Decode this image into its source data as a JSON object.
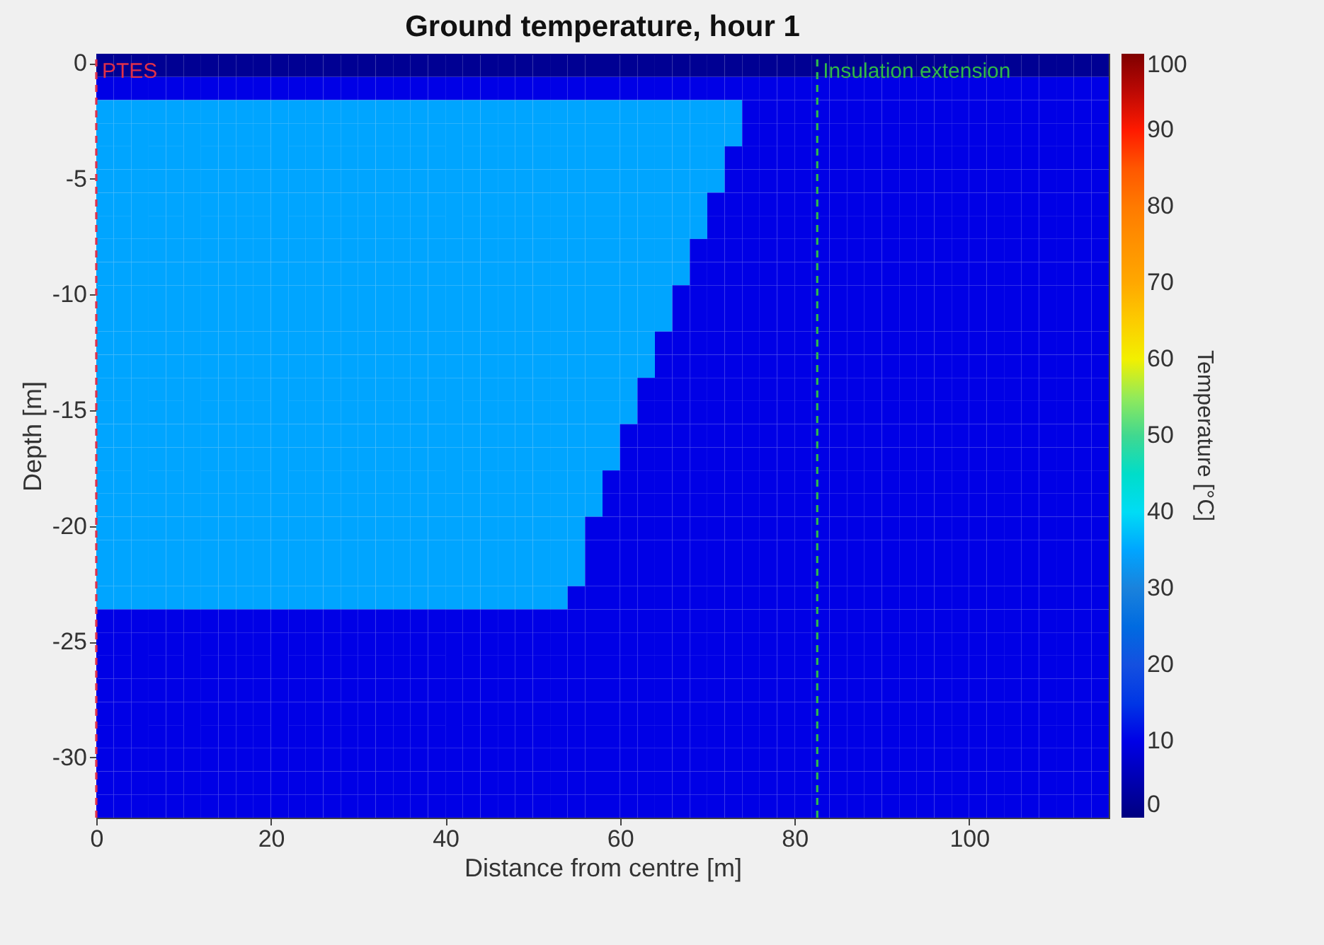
{
  "chart_data": {
    "type": "heatmap",
    "title": "Ground temperature, hour 1",
    "xlabel": "Distance from centre [m]",
    "ylabel": "Depth [m]",
    "clabel": "Temperature [°C]",
    "x": [
      1,
      3,
      5,
      7,
      9,
      11,
      13,
      15,
      17,
      19,
      21,
      23,
      25,
      27,
      29,
      31,
      33,
      35,
      37,
      39,
      41,
      43,
      45,
      47,
      49,
      51,
      53,
      55,
      57,
      59,
      61,
      63,
      65,
      67,
      69,
      71,
      73,
      75,
      77,
      79,
      81,
      83,
      85,
      87,
      89,
      91,
      93,
      95,
      97,
      99,
      101,
      103,
      105,
      107,
      109,
      111,
      113,
      115
    ],
    "cells": [
      [
        2,
        2,
        2,
        2,
        2,
        2,
        2,
        2,
        2,
        2,
        2,
        2,
        2,
        2,
        2,
        2,
        2,
        2,
        2,
        2,
        2,
        2,
        2,
        2,
        2,
        2,
        2,
        2,
        2,
        2,
        2,
        2,
        2,
        2,
        2,
        2,
        2,
        2,
        2,
        2,
        2,
        2,
        2,
        2,
        2,
        2,
        2,
        2,
        2,
        2,
        2,
        2,
        2,
        2,
        2,
        2,
        2,
        2
      ],
      [
        10,
        10,
        10,
        10,
        10,
        10,
        10,
        10,
        10,
        10,
        10,
        10,
        10,
        10,
        10,
        10,
        10,
        10,
        10,
        10,
        10,
        10,
        10,
        10,
        10,
        10,
        10,
        10,
        10,
        10,
        10,
        10,
        10,
        10,
        10,
        10,
        10,
        10,
        10,
        10,
        10,
        10,
        10,
        10,
        10,
        10,
        10,
        10,
        10,
        10,
        10,
        10,
        10,
        10,
        10,
        10,
        10,
        10
      ],
      [
        35,
        35,
        35,
        35,
        35,
        35,
        35,
        35,
        35,
        35,
        35,
        35,
        35,
        35,
        35,
        35,
        35,
        35,
        35,
        35,
        35,
        35,
        35,
        35,
        35,
        35,
        35,
        35,
        35,
        35,
        35,
        35,
        35,
        35,
        35,
        35,
        35,
        10,
        10,
        10,
        10,
        10,
        10,
        10,
        10,
        10,
        10,
        10,
        10,
        10,
        10,
        10,
        10,
        10,
        10,
        10,
        10,
        10
      ],
      [
        35,
        35,
        35,
        35,
        35,
        35,
        35,
        35,
        35,
        35,
        35,
        35,
        35,
        35,
        35,
        35,
        35,
        35,
        35,
        35,
        35,
        35,
        35,
        35,
        35,
        35,
        35,
        35,
        35,
        35,
        35,
        35,
        35,
        35,
        35,
        35,
        35,
        10,
        10,
        10,
        10,
        10,
        10,
        10,
        10,
        10,
        10,
        10,
        10,
        10,
        10,
        10,
        10,
        10,
        10,
        10,
        10,
        10
      ],
      [
        35,
        35,
        35,
        35,
        35,
        35,
        35,
        35,
        35,
        35,
        35,
        35,
        35,
        35,
        35,
        35,
        35,
        35,
        35,
        35,
        35,
        35,
        35,
        35,
        35,
        35,
        35,
        35,
        35,
        35,
        35,
        35,
        35,
        35,
        35,
        35,
        10,
        10,
        10,
        10,
        10,
        10,
        10,
        10,
        10,
        10,
        10,
        10,
        10,
        10,
        10,
        10,
        10,
        10,
        10,
        10,
        10,
        10
      ],
      [
        35,
        35,
        35,
        35,
        35,
        35,
        35,
        35,
        35,
        35,
        35,
        35,
        35,
        35,
        35,
        35,
        35,
        35,
        35,
        35,
        35,
        35,
        35,
        35,
        35,
        35,
        35,
        35,
        35,
        35,
        35,
        35,
        35,
        35,
        35,
        35,
        10,
        10,
        10,
        10,
        10,
        10,
        10,
        10,
        10,
        10,
        10,
        10,
        10,
        10,
        10,
        10,
        10,
        10,
        10,
        10,
        10,
        10
      ],
      [
        35,
        35,
        35,
        35,
        35,
        35,
        35,
        35,
        35,
        35,
        35,
        35,
        35,
        35,
        35,
        35,
        35,
        35,
        35,
        35,
        35,
        35,
        35,
        35,
        35,
        35,
        35,
        35,
        35,
        35,
        35,
        35,
        35,
        35,
        35,
        10,
        10,
        10,
        10,
        10,
        10,
        10,
        10,
        10,
        10,
        10,
        10,
        10,
        10,
        10,
        10,
        10,
        10,
        10,
        10,
        10,
        10,
        10
      ],
      [
        35,
        35,
        35,
        35,
        35,
        35,
        35,
        35,
        35,
        35,
        35,
        35,
        35,
        35,
        35,
        35,
        35,
        35,
        35,
        35,
        35,
        35,
        35,
        35,
        35,
        35,
        35,
        35,
        35,
        35,
        35,
        35,
        35,
        35,
        35,
        10,
        10,
        10,
        10,
        10,
        10,
        10,
        10,
        10,
        10,
        10,
        10,
        10,
        10,
        10,
        10,
        10,
        10,
        10,
        10,
        10,
        10,
        10
      ],
      [
        35,
        35,
        35,
        35,
        35,
        35,
        35,
        35,
        35,
        35,
        35,
        35,
        35,
        35,
        35,
        35,
        35,
        35,
        35,
        35,
        35,
        35,
        35,
        35,
        35,
        35,
        35,
        35,
        35,
        35,
        35,
        35,
        35,
        35,
        10,
        10,
        10,
        10,
        10,
        10,
        10,
        10,
        10,
        10,
        10,
        10,
        10,
        10,
        10,
        10,
        10,
        10,
        10,
        10,
        10,
        10,
        10,
        10
      ],
      [
        35,
        35,
        35,
        35,
        35,
        35,
        35,
        35,
        35,
        35,
        35,
        35,
        35,
        35,
        35,
        35,
        35,
        35,
        35,
        35,
        35,
        35,
        35,
        35,
        35,
        35,
        35,
        35,
        35,
        35,
        35,
        35,
        35,
        35,
        10,
        10,
        10,
        10,
        10,
        10,
        10,
        10,
        10,
        10,
        10,
        10,
        10,
        10,
        10,
        10,
        10,
        10,
        10,
        10,
        10,
        10,
        10,
        10
      ],
      [
        35,
        35,
        35,
        35,
        35,
        35,
        35,
        35,
        35,
        35,
        35,
        35,
        35,
        35,
        35,
        35,
        35,
        35,
        35,
        35,
        35,
        35,
        35,
        35,
        35,
        35,
        35,
        35,
        35,
        35,
        35,
        35,
        35,
        10,
        10,
        10,
        10,
        10,
        10,
        10,
        10,
        10,
        10,
        10,
        10,
        10,
        10,
        10,
        10,
        10,
        10,
        10,
        10,
        10,
        10,
        10,
        10,
        10
      ],
      [
        35,
        35,
        35,
        35,
        35,
        35,
        35,
        35,
        35,
        35,
        35,
        35,
        35,
        35,
        35,
        35,
        35,
        35,
        35,
        35,
        35,
        35,
        35,
        35,
        35,
        35,
        35,
        35,
        35,
        35,
        35,
        35,
        35,
        10,
        10,
        10,
        10,
        10,
        10,
        10,
        10,
        10,
        10,
        10,
        10,
        10,
        10,
        10,
        10,
        10,
        10,
        10,
        10,
        10,
        10,
        10,
        10,
        10
      ],
      [
        35,
        35,
        35,
        35,
        35,
        35,
        35,
        35,
        35,
        35,
        35,
        35,
        35,
        35,
        35,
        35,
        35,
        35,
        35,
        35,
        35,
        35,
        35,
        35,
        35,
        35,
        35,
        35,
        35,
        35,
        35,
        35,
        10,
        10,
        10,
        10,
        10,
        10,
        10,
        10,
        10,
        10,
        10,
        10,
        10,
        10,
        10,
        10,
        10,
        10,
        10,
        10,
        10,
        10,
        10,
        10,
        10,
        10
      ],
      [
        35,
        35,
        35,
        35,
        35,
        35,
        35,
        35,
        35,
        35,
        35,
        35,
        35,
        35,
        35,
        35,
        35,
        35,
        35,
        35,
        35,
        35,
        35,
        35,
        35,
        35,
        35,
        35,
        35,
        35,
        35,
        35,
        10,
        10,
        10,
        10,
        10,
        10,
        10,
        10,
        10,
        10,
        10,
        10,
        10,
        10,
        10,
        10,
        10,
        10,
        10,
        10,
        10,
        10,
        10,
        10,
        10,
        10
      ],
      [
        35,
        35,
        35,
        35,
        35,
        35,
        35,
        35,
        35,
        35,
        35,
        35,
        35,
        35,
        35,
        35,
        35,
        35,
        35,
        35,
        35,
        35,
        35,
        35,
        35,
        35,
        35,
        35,
        35,
        35,
        35,
        10,
        10,
        10,
        10,
        10,
        10,
        10,
        10,
        10,
        10,
        10,
        10,
        10,
        10,
        10,
        10,
        10,
        10,
        10,
        10,
        10,
        10,
        10,
        10,
        10,
        10,
        10
      ],
      [
        35,
        35,
        35,
        35,
        35,
        35,
        35,
        35,
        35,
        35,
        35,
        35,
        35,
        35,
        35,
        35,
        35,
        35,
        35,
        35,
        35,
        35,
        35,
        35,
        35,
        35,
        35,
        35,
        35,
        35,
        35,
        10,
        10,
        10,
        10,
        10,
        10,
        10,
        10,
        10,
        10,
        10,
        10,
        10,
        10,
        10,
        10,
        10,
        10,
        10,
        10,
        10,
        10,
        10,
        10,
        10,
        10,
        10
      ],
      [
        35,
        35,
        35,
        35,
        35,
        35,
        35,
        35,
        35,
        35,
        35,
        35,
        35,
        35,
        35,
        35,
        35,
        35,
        35,
        35,
        35,
        35,
        35,
        35,
        35,
        35,
        35,
        35,
        35,
        35,
        10,
        10,
        10,
        10,
        10,
        10,
        10,
        10,
        10,
        10,
        10,
        10,
        10,
        10,
        10,
        10,
        10,
        10,
        10,
        10,
        10,
        10,
        10,
        10,
        10,
        10,
        10,
        10
      ],
      [
        35,
        35,
        35,
        35,
        35,
        35,
        35,
        35,
        35,
        35,
        35,
        35,
        35,
        35,
        35,
        35,
        35,
        35,
        35,
        35,
        35,
        35,
        35,
        35,
        35,
        35,
        35,
        35,
        35,
        35,
        10,
        10,
        10,
        10,
        10,
        10,
        10,
        10,
        10,
        10,
        10,
        10,
        10,
        10,
        10,
        10,
        10,
        10,
        10,
        10,
        10,
        10,
        10,
        10,
        10,
        10,
        10,
        10
      ],
      [
        35,
        35,
        35,
        35,
        35,
        35,
        35,
        35,
        35,
        35,
        35,
        35,
        35,
        35,
        35,
        35,
        35,
        35,
        35,
        35,
        35,
        35,
        35,
        35,
        35,
        35,
        35,
        35,
        35,
        10,
        10,
        10,
        10,
        10,
        10,
        10,
        10,
        10,
        10,
        10,
        10,
        10,
        10,
        10,
        10,
        10,
        10,
        10,
        10,
        10,
        10,
        10,
        10,
        10,
        10,
        10,
        10,
        10
      ],
      [
        35,
        35,
        35,
        35,
        35,
        35,
        35,
        35,
        35,
        35,
        35,
        35,
        35,
        35,
        35,
        35,
        35,
        35,
        35,
        35,
        35,
        35,
        35,
        35,
        35,
        35,
        35,
        35,
        35,
        10,
        10,
        10,
        10,
        10,
        10,
        10,
        10,
        10,
        10,
        10,
        10,
        10,
        10,
        10,
        10,
        10,
        10,
        10,
        10,
        10,
        10,
        10,
        10,
        10,
        10,
        10,
        10,
        10
      ],
      [
        35,
        35,
        35,
        35,
        35,
        35,
        35,
        35,
        35,
        35,
        35,
        35,
        35,
        35,
        35,
        35,
        35,
        35,
        35,
        35,
        35,
        35,
        35,
        35,
        35,
        35,
        35,
        35,
        10,
        10,
        10,
        10,
        10,
        10,
        10,
        10,
        10,
        10,
        10,
        10,
        10,
        10,
        10,
        10,
        10,
        10,
        10,
        10,
        10,
        10,
        10,
        10,
        10,
        10,
        10,
        10,
        10,
        10
      ],
      [
        35,
        35,
        35,
        35,
        35,
        35,
        35,
        35,
        35,
        35,
        35,
        35,
        35,
        35,
        35,
        35,
        35,
        35,
        35,
        35,
        35,
        35,
        35,
        35,
        35,
        35,
        35,
        35,
        10,
        10,
        10,
        10,
        10,
        10,
        10,
        10,
        10,
        10,
        10,
        10,
        10,
        10,
        10,
        10,
        10,
        10,
        10,
        10,
        10,
        10,
        10,
        10,
        10,
        10,
        10,
        10,
        10,
        10
      ],
      [
        35,
        35,
        35,
        35,
        35,
        35,
        35,
        35,
        35,
        35,
        35,
        35,
        35,
        35,
        35,
        35,
        35,
        35,
        35,
        35,
        35,
        35,
        35,
        35,
        35,
        35,
        35,
        35,
        10,
        10,
        10,
        10,
        10,
        10,
        10,
        10,
        10,
        10,
        10,
        10,
        10,
        10,
        10,
        10,
        10,
        10,
        10,
        10,
        10,
        10,
        10,
        10,
        10,
        10,
        10,
        10,
        10,
        10
      ],
      [
        35,
        35,
        35,
        35,
        35,
        35,
        35,
        35,
        35,
        35,
        35,
        35,
        35,
        35,
        35,
        35,
        35,
        35,
        35,
        35,
        35,
        35,
        35,
        35,
        35,
        35,
        35,
        10,
        10,
        10,
        10,
        10,
        10,
        10,
        10,
        10,
        10,
        10,
        10,
        10,
        10,
        10,
        10,
        10,
        10,
        10,
        10,
        10,
        10,
        10,
        10,
        10,
        10,
        10,
        10,
        10,
        10,
        10
      ],
      [
        10,
        10,
        10,
        10,
        10,
        10,
        10,
        10,
        10,
        10,
        10,
        10,
        10,
        10,
        10,
        10,
        10,
        10,
        10,
        10,
        10,
        10,
        10,
        10,
        10,
        10,
        10,
        10,
        10,
        10,
        10,
        10,
        10,
        10,
        10,
        10,
        10,
        10,
        10,
        10,
        10,
        10,
        10,
        10,
        10,
        10,
        10,
        10,
        10,
        10,
        10,
        10,
        10,
        10,
        10,
        10,
        10,
        10
      ],
      [
        10,
        10,
        10,
        10,
        10,
        10,
        10,
        10,
        10,
        10,
        10,
        10,
        10,
        10,
        10,
        10,
        10,
        10,
        10,
        10,
        10,
        10,
        10,
        10,
        10,
        10,
        10,
        10,
        10,
        10,
        10,
        10,
        10,
        10,
        10,
        10,
        10,
        10,
        10,
        10,
        10,
        10,
        10,
        10,
        10,
        10,
        10,
        10,
        10,
        10,
        10,
        10,
        10,
        10,
        10,
        10,
        10,
        10
      ],
      [
        10,
        10,
        10,
        10,
        10,
        10,
        10,
        10,
        10,
        10,
        10,
        10,
        10,
        10,
        10,
        10,
        10,
        10,
        10,
        10,
        10,
        10,
        10,
        10,
        10,
        10,
        10,
        10,
        10,
        10,
        10,
        10,
        10,
        10,
        10,
        10,
        10,
        10,
        10,
        10,
        10,
        10,
        10,
        10,
        10,
        10,
        10,
        10,
        10,
        10,
        10,
        10,
        10,
        10,
        10,
        10,
        10,
        10
      ],
      [
        10,
        10,
        10,
        10,
        10,
        10,
        10,
        10,
        10,
        10,
        10,
        10,
        10,
        10,
        10,
        10,
        10,
        10,
        10,
        10,
        10,
        10,
        10,
        10,
        10,
        10,
        10,
        10,
        10,
        10,
        10,
        10,
        10,
        10,
        10,
        10,
        10,
        10,
        10,
        10,
        10,
        10,
        10,
        10,
        10,
        10,
        10,
        10,
        10,
        10,
        10,
        10,
        10,
        10,
        10,
        10,
        10,
        10
      ],
      [
        10,
        10,
        10,
        10,
        10,
        10,
        10,
        10,
        10,
        10,
        10,
        10,
        10,
        10,
        10,
        10,
        10,
        10,
        10,
        10,
        10,
        10,
        10,
        10,
        10,
        10,
        10,
        10,
        10,
        10,
        10,
        10,
        10,
        10,
        10,
        10,
        10,
        10,
        10,
        10,
        10,
        10,
        10,
        10,
        10,
        10,
        10,
        10,
        10,
        10,
        10,
        10,
        10,
        10,
        10,
        10,
        10,
        10
      ],
      [
        10,
        10,
        10,
        10,
        10,
        10,
        10,
        10,
        10,
        10,
        10,
        10,
        10,
        10,
        10,
        10,
        10,
        10,
        10,
        10,
        10,
        10,
        10,
        10,
        10,
        10,
        10,
        10,
        10,
        10,
        10,
        10,
        10,
        10,
        10,
        10,
        10,
        10,
        10,
        10,
        10,
        10,
        10,
        10,
        10,
        10,
        10,
        10,
        10,
        10,
        10,
        10,
        10,
        10,
        10,
        10,
        10,
        10
      ],
      [
        10,
        10,
        10,
        10,
        10,
        10,
        10,
        10,
        10,
        10,
        10,
        10,
        10,
        10,
        10,
        10,
        10,
        10,
        10,
        10,
        10,
        10,
        10,
        10,
        10,
        10,
        10,
        10,
        10,
        10,
        10,
        10,
        10,
        10,
        10,
        10,
        10,
        10,
        10,
        10,
        10,
        10,
        10,
        10,
        10,
        10,
        10,
        10,
        10,
        10,
        10,
        10,
        10,
        10,
        10,
        10,
        10,
        10
      ],
      [
        10,
        10,
        10,
        10,
        10,
        10,
        10,
        10,
        10,
        10,
        10,
        10,
        10,
        10,
        10,
        10,
        10,
        10,
        10,
        10,
        10,
        10,
        10,
        10,
        10,
        10,
        10,
        10,
        10,
        10,
        10,
        10,
        10,
        10,
        10,
        10,
        10,
        10,
        10,
        10,
        10,
        10,
        10,
        10,
        10,
        10,
        10,
        10,
        10,
        10,
        10,
        10,
        10,
        10,
        10,
        10,
        10,
        10
      ],
      [
        10,
        10,
        10,
        10,
        10,
        10,
        10,
        10,
        10,
        10,
        10,
        10,
        10,
        10,
        10,
        10,
        10,
        10,
        10,
        10,
        10,
        10,
        10,
        10,
        10,
        10,
        10,
        10,
        10,
        10,
        10,
        10,
        10,
        10,
        10,
        10,
        10,
        10,
        10,
        10,
        10,
        10,
        10,
        10,
        10,
        10,
        10,
        10,
        10,
        10,
        10,
        10,
        10,
        10,
        10,
        10,
        10,
        10
      ]
    ],
    "xlim": [
      0,
      116
    ],
    "xticks": [
      0,
      20,
      40,
      60,
      80,
      100
    ],
    "ylim": [
      -32.6,
      0.4
    ],
    "yticks": [
      -30,
      -25,
      -20,
      -15,
      -10,
      -5,
      0
    ],
    "clim": [
      0,
      100
    ],
    "cticks": [
      0,
      10,
      20,
      30,
      40,
      50,
      60,
      70,
      80,
      90,
      100
    ],
    "ref_lines": [
      {
        "axis": "x",
        "value": 0,
        "label": "PTES",
        "color": "#e0304a",
        "line_style": "dashed"
      },
      {
        "axis": "x",
        "value": 82.6,
        "label": "Insulation extension",
        "color": "#2fb84a",
        "line_style": "dashed"
      }
    ]
  }
}
